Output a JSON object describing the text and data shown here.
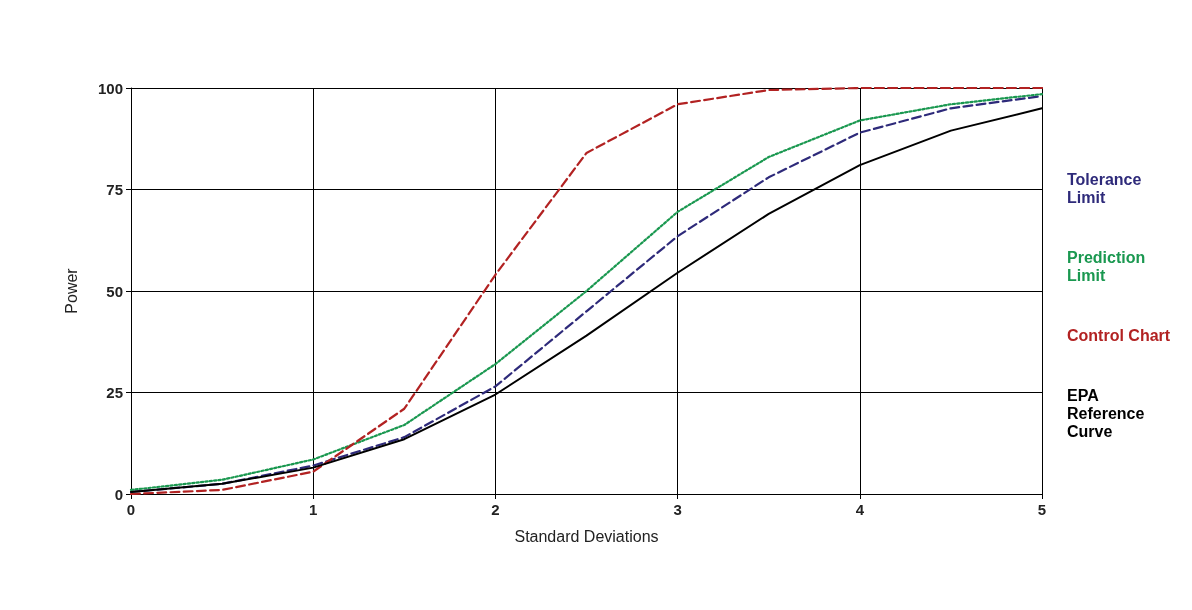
{
  "chart_data": {
    "type": "line",
    "xlabel": "Standard Deviations",
    "ylabel": "Power",
    "x": [
      0,
      0.5,
      1,
      1.5,
      2,
      2.5,
      3,
      3.5,
      4,
      4.5,
      5
    ],
    "series": [
      {
        "name": "Tolerance Limit",
        "color": "#2e2a7a",
        "line_style": "dashed",
        "values": [
          0.5,
          2.5,
          7,
          14,
          26.5,
          45,
          63.5,
          78,
          89,
          95,
          98
        ]
      },
      {
        "name": "Prediction Limit",
        "color": "#1a9850",
        "line_style": "dotted",
        "values": [
          1,
          3.5,
          8.5,
          17,
          32,
          50,
          69.5,
          83,
          92,
          96,
          98.5
        ]
      },
      {
        "name": "Control Chart",
        "color": "#b22222",
        "line_style": "dashed",
        "values": [
          0,
          1,
          5.5,
          21,
          54,
          84,
          96,
          99.5,
          100,
          100,
          100
        ]
      },
      {
        "name": "EPA Reference Curve",
        "color": "#000000",
        "line_style": "solid",
        "values": [
          0.5,
          2.5,
          6.5,
          13.5,
          24.5,
          39,
          54.5,
          69,
          81,
          89.5,
          95
        ]
      }
    ],
    "xlim": [
      0,
      5
    ],
    "xticks": [
      0,
      1,
      2,
      3,
      4,
      5
    ],
    "ylim": [
      0,
      100
    ],
    "yticks": [
      0,
      25,
      50,
      75,
      100
    ],
    "grid": true,
    "legend": "right",
    "marker": "none"
  }
}
